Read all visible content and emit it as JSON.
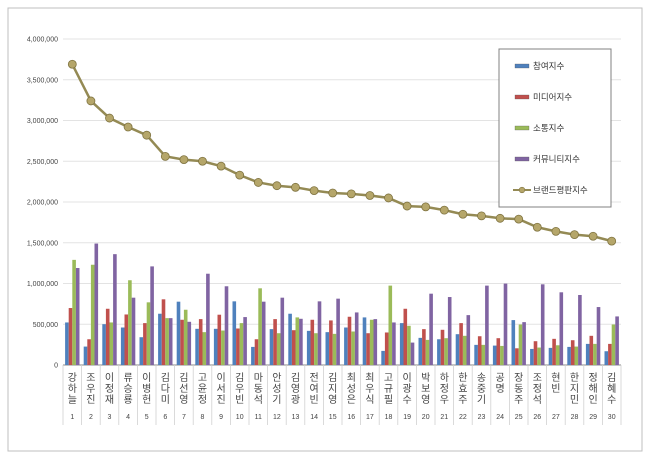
{
  "chart_data": {
    "type": "bar",
    "title": "",
    "xlabel": "",
    "ylabel": "",
    "ylim": [
      0,
      4000000
    ],
    "yticks": [
      "0",
      "500,000",
      "1,000,000",
      "1,500,000",
      "2,000,000",
      "2,500,000",
      "3,000,000",
      "3,500,000",
      "4,000,000"
    ],
    "grid": true,
    "legend_position": "top-right",
    "categories": [
      "강하늘",
      "조우진",
      "이정재",
      "류승룡",
      "이병헌",
      "김다미",
      "김선영",
      "고윤정",
      "이서진",
      "김우빈",
      "마동석",
      "안성기",
      "김영광",
      "전여빈",
      "김지영",
      "최성은",
      "최우식",
      "고규필",
      "이광수",
      "박보영",
      "하정우",
      "한효주",
      "송중기",
      "공명",
      "장동주",
      "조정석",
      "현빈",
      "한지민",
      "정해인",
      "김혜수"
    ],
    "ranks": [
      "1",
      "2",
      "3",
      "4",
      "5",
      "6",
      "7",
      "8",
      "9",
      "10",
      "11",
      "12",
      "13",
      "14",
      "15",
      "16",
      "17",
      "18",
      "19",
      "20",
      "21",
      "22",
      "23",
      "24",
      "25",
      "26",
      "27",
      "28",
      "29",
      "30"
    ],
    "series": [
      {
        "name": "참여지수",
        "type": "bar",
        "color": "#4f81bd",
        "values": [
          522000,
          226000,
          501000,
          460000,
          341000,
          629000,
          777000,
          444000,
          444000,
          781000,
          222000,
          440000,
          629000,
          419000,
          403000,
          460000,
          584000,
          173000,
          514000,
          333000,
          316000,
          378000,
          247000,
          238000,
          551000,
          197000,
          210000,
          222000,
          259000,
          169000
        ]
      },
      {
        "name": "미디어지수",
        "type": "bar",
        "color": "#c0504d",
        "values": [
          699000,
          316000,
          690000,
          620000,
          514000,
          806000,
          555000,
          563000,
          617000,
          448000,
          316000,
          563000,
          427000,
          555000,
          547000,
          592000,
          390000,
          399000,
          690000,
          440000,
          432000,
          514000,
          353000,
          329000,
          205000,
          292000,
          321000,
          304000,
          358000,
          259000
        ]
      },
      {
        "name": "소통지수",
        "type": "bar",
        "color": "#9bbb59",
        "values": [
          1290000,
          1230000,
          522000,
          1040000,
          769000,
          575000,
          678000,
          403000,
          423000,
          514000,
          941000,
          390000,
          584000,
          390000,
          382000,
          411000,
          555000,
          974000,
          481000,
          308000,
          329000,
          358000,
          247000,
          234000,
          497000,
          214000,
          242000,
          226000,
          259000,
          497000
        ]
      },
      {
        "name": "커뮤니티지수",
        "type": "bar",
        "color": "#8064a2",
        "values": [
          1190000,
          1490000,
          1360000,
          826000,
          1210000,
          575000,
          530000,
          1120000,
          966000,
          588000,
          777000,
          826000,
          567000,
          781000,
          814000,
          645000,
          563000,
          522000,
          275000,
          875000,
          834000,
          612000,
          974000,
          999000,
          526000,
          990000,
          892000,
          859000,
          711000,
          596000
        ]
      },
      {
        "name": "브랜드평판지수",
        "type": "line",
        "color": "#948a54",
        "values": [
          3690000,
          3240000,
          3030000,
          2920000,
          2820000,
          2560000,
          2520000,
          2500000,
          2440000,
          2330000,
          2240000,
          2200000,
          2180000,
          2140000,
          2110000,
          2100000,
          2080000,
          2050000,
          1950000,
          1940000,
          1900000,
          1850000,
          1830000,
          1800000,
          1790000,
          1690000,
          1640000,
          1600000,
          1580000,
          1520000
        ]
      }
    ]
  }
}
